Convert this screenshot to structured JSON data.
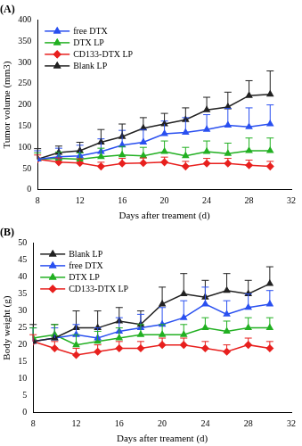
{
  "chart_data": [
    {
      "type": "line",
      "title": "(A)",
      "x_label": "Days after treament (d)",
      "y_label": "Tumor volume (mm3)",
      "x": [
        8,
        10,
        12,
        14,
        16,
        18,
        20,
        22,
        24,
        26,
        28,
        30
      ],
      "xlim": [
        8,
        32
      ],
      "xticks": [
        8,
        12,
        16,
        20,
        24,
        28,
        32
      ],
      "ylim": [
        0,
        400
      ],
      "yticks": [
        0,
        50,
        100,
        150,
        200,
        250,
        300,
        350,
        400
      ],
      "grid": false,
      "legend": "upper left",
      "series": [
        {
          "name": "free DTX",
          "color": "#2a50f0",
          "marker": "triangle",
          "line_style": "solid",
          "values": [
            72,
            78,
            80,
            90,
            105,
            112,
            132,
            135,
            142,
            152,
            148,
            155
          ],
          "errors": [
            20,
            20,
            25,
            30,
            35,
            30,
            30,
            35,
            35,
            40,
            45,
            45
          ]
        },
        {
          "name": "DTX LP",
          "color": "#22b022",
          "marker": "triangle",
          "line_style": "solid",
          "values": [
            72,
            74,
            72,
            78,
            82,
            80,
            90,
            80,
            90,
            85,
            92,
            92
          ],
          "errors": [
            15,
            15,
            15,
            20,
            20,
            20,
            25,
            20,
            25,
            25,
            30,
            30
          ]
        },
        {
          "name": "CD133-DTX LP",
          "color": "#e8201e",
          "marker": "diamond",
          "line_style": "solid",
          "values": [
            72,
            65,
            63,
            55,
            62,
            63,
            65,
            55,
            62,
            62,
            58,
            55
          ],
          "errors": [
            10,
            10,
            10,
            10,
            12,
            12,
            12,
            12,
            12,
            12,
            12,
            12
          ]
        },
        {
          "name": "Blank LP",
          "color": "#222222",
          "marker": "triangle",
          "line_style": "solid",
          "values": [
            72,
            88,
            92,
            112,
            125,
            145,
            155,
            165,
            188,
            195,
            222,
            225
          ],
          "errors": [
            25,
            15,
            20,
            30,
            30,
            25,
            25,
            28,
            30,
            35,
            35,
            55
          ]
        }
      ]
    },
    {
      "type": "line",
      "title": "(B)",
      "x_label": "Days after treament (d)",
      "y_label": "Body weight (g)",
      "x": [
        8,
        10,
        12,
        14,
        16,
        18,
        20,
        22,
        24,
        26,
        28,
        30
      ],
      "xlim": [
        8,
        32
      ],
      "xticks": [
        8,
        12,
        16,
        20,
        24,
        28,
        32
      ],
      "ylim": [
        0,
        50
      ],
      "yticks": [
        0,
        5,
        10,
        15,
        20,
        25,
        30,
        35,
        40,
        45,
        50
      ],
      "grid": false,
      "legend": "upper left",
      "series": [
        {
          "name": "Blank LP",
          "color": "#222222",
          "marker": "triangle",
          "line_style": "solid",
          "values": [
            21,
            22,
            25,
            25,
            27,
            26,
            32,
            35,
            34,
            36,
            35,
            38
          ],
          "errors": [
            5,
            4,
            5,
            5,
            4,
            4,
            5,
            6,
            5,
            5,
            4,
            5
          ]
        },
        {
          "name": "free DTX",
          "color": "#2a50f0",
          "marker": "triangle",
          "line_style": "solid",
          "values": [
            21,
            22,
            23,
            22,
            24,
            25,
            26,
            28,
            32,
            29,
            31,
            32
          ],
          "errors": [
            4,
            3,
            3,
            3,
            4,
            4,
            5,
            5,
            5,
            4,
            4,
            4
          ]
        },
        {
          "name": "DTX LP",
          "color": "#22b022",
          "marker": "triangle",
          "line_style": "solid",
          "values": [
            22,
            23,
            20,
            21,
            22,
            23,
            23,
            23,
            25,
            24,
            25,
            25
          ],
          "errors": [
            3,
            3,
            3,
            3,
            3,
            3,
            3,
            3,
            3,
            3,
            3,
            3
          ]
        },
        {
          "name": "CD133-DTX LP",
          "color": "#e8201e",
          "marker": "diamond",
          "line_style": "solid",
          "values": [
            21,
            19,
            17,
            18,
            19,
            19,
            20,
            20,
            19,
            18,
            20,
            19
          ],
          "errors": [
            2,
            2,
            2,
            2,
            2,
            2,
            2,
            2,
            2,
            2,
            2,
            2
          ]
        }
      ]
    }
  ]
}
